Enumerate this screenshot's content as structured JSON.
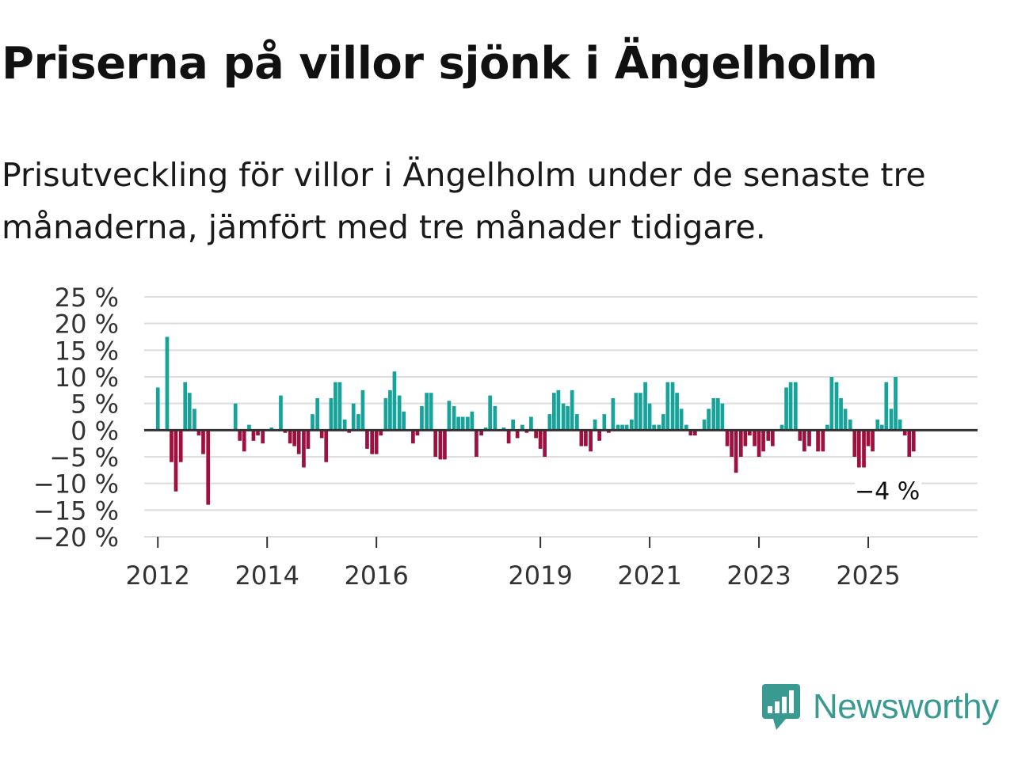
{
  "title": "Priserna på villor sjönk i Ängelholm",
  "subtitle": "Prisutveckling för villor i Ängelholm under de senaste tre månaderna, jämfört med tre månader tidigare.",
  "logo": {
    "text": "Newsworthy",
    "icon": "chart-bubble-icon"
  },
  "colors": {
    "positive": "#17a39a",
    "negative": "#a0103f",
    "grid": "#dddddd",
    "text": "#333333",
    "brand": "#3a9a92"
  },
  "chart_data": {
    "type": "bar",
    "title": "Prisutveckling för villor i Ängelholm",
    "xlabel": "",
    "ylabel": "",
    "ylim": [
      -20,
      25
    ],
    "yticks": [
      25,
      20,
      15,
      10,
      5,
      0,
      -5,
      -10,
      -15,
      -20
    ],
    "ytick_labels": [
      "25 %",
      "20 %",
      "15 %",
      "10 %",
      "5 %",
      "0 %",
      "−5 %",
      "−10 %",
      "−15 %",
      "−20 %"
    ],
    "xlim": [
      2011.75,
      2027.0
    ],
    "xticks": [
      2012,
      2014,
      2016,
      2019,
      2021,
      2023,
      2025
    ],
    "xtick_labels": [
      "2012",
      "2014",
      "2016",
      "2019",
      "2021",
      "2023",
      "2025"
    ],
    "annotation": {
      "label": "−4 %",
      "x": 2025.83,
      "y": -4
    },
    "bars": [
      {
        "x": 2012.0,
        "y": 8
      },
      {
        "x": 2012.17,
        "y": 17.5
      },
      {
        "x": 2012.25,
        "y": -6
      },
      {
        "x": 2012.33,
        "y": -11.5
      },
      {
        "x": 2012.42,
        "y": -6
      },
      {
        "x": 2012.5,
        "y": 9
      },
      {
        "x": 2012.58,
        "y": 7
      },
      {
        "x": 2012.67,
        "y": 4
      },
      {
        "x": 2012.75,
        "y": -1
      },
      {
        "x": 2012.83,
        "y": -4.5
      },
      {
        "x": 2012.92,
        "y": -14
      },
      {
        "x": 2013.42,
        "y": 5
      },
      {
        "x": 2013.5,
        "y": -2
      },
      {
        "x": 2013.58,
        "y": -4
      },
      {
        "x": 2013.67,
        "y": 1
      },
      {
        "x": 2013.75,
        "y": -2
      },
      {
        "x": 2013.83,
        "y": -1
      },
      {
        "x": 2013.92,
        "y": -2.5
      },
      {
        "x": 2014.08,
        "y": 0.5
      },
      {
        "x": 2014.25,
        "y": 6.5
      },
      {
        "x": 2014.33,
        "y": -0.5
      },
      {
        "x": 2014.42,
        "y": -2.5
      },
      {
        "x": 2014.5,
        "y": -3
      },
      {
        "x": 2014.58,
        "y": -4.5
      },
      {
        "x": 2014.67,
        "y": -7
      },
      {
        "x": 2014.75,
        "y": -3.5
      },
      {
        "x": 2014.83,
        "y": 3
      },
      {
        "x": 2014.92,
        "y": 6
      },
      {
        "x": 2015.0,
        "y": -1.5
      },
      {
        "x": 2015.08,
        "y": -6
      },
      {
        "x": 2015.17,
        "y": 6
      },
      {
        "x": 2015.25,
        "y": 9
      },
      {
        "x": 2015.33,
        "y": 9
      },
      {
        "x": 2015.42,
        "y": 2
      },
      {
        "x": 2015.5,
        "y": -0.5
      },
      {
        "x": 2015.58,
        "y": 5
      },
      {
        "x": 2015.67,
        "y": 3
      },
      {
        "x": 2015.75,
        "y": 7.5
      },
      {
        "x": 2015.83,
        "y": -3.5
      },
      {
        "x": 2015.92,
        "y": -4.5
      },
      {
        "x": 2016.0,
        "y": -4.5
      },
      {
        "x": 2016.08,
        "y": -1
      },
      {
        "x": 2016.17,
        "y": 6
      },
      {
        "x": 2016.25,
        "y": 7.5
      },
      {
        "x": 2016.33,
        "y": 11
      },
      {
        "x": 2016.42,
        "y": 6.5
      },
      {
        "x": 2016.5,
        "y": 3.5
      },
      {
        "x": 2016.67,
        "y": -2.5
      },
      {
        "x": 2016.75,
        "y": -1
      },
      {
        "x": 2016.83,
        "y": 4.5
      },
      {
        "x": 2016.92,
        "y": 7
      },
      {
        "x": 2017.0,
        "y": 7
      },
      {
        "x": 2017.08,
        "y": -5
      },
      {
        "x": 2017.17,
        "y": -5.5
      },
      {
        "x": 2017.25,
        "y": -5.5
      },
      {
        "x": 2017.33,
        "y": 5.5
      },
      {
        "x": 2017.42,
        "y": 4.5
      },
      {
        "x": 2017.5,
        "y": 2.5
      },
      {
        "x": 2017.58,
        "y": 2.5
      },
      {
        "x": 2017.67,
        "y": 2.5
      },
      {
        "x": 2017.75,
        "y": 3.5
      },
      {
        "x": 2017.83,
        "y": -5
      },
      {
        "x": 2017.92,
        "y": -1
      },
      {
        "x": 2018.0,
        "y": 0.5
      },
      {
        "x": 2018.08,
        "y": 6.5
      },
      {
        "x": 2018.17,
        "y": 4.5
      },
      {
        "x": 2018.33,
        "y": 0.5
      },
      {
        "x": 2018.42,
        "y": -2.5
      },
      {
        "x": 2018.5,
        "y": 2
      },
      {
        "x": 2018.58,
        "y": -1.5
      },
      {
        "x": 2018.67,
        "y": 1
      },
      {
        "x": 2018.75,
        "y": -0.5
      },
      {
        "x": 2018.83,
        "y": 2.5
      },
      {
        "x": 2018.92,
        "y": -1.5
      },
      {
        "x": 2019.0,
        "y": -3.5
      },
      {
        "x": 2019.08,
        "y": -5
      },
      {
        "x": 2019.17,
        "y": 3
      },
      {
        "x": 2019.25,
        "y": 7
      },
      {
        "x": 2019.33,
        "y": 7.5
      },
      {
        "x": 2019.42,
        "y": 5
      },
      {
        "x": 2019.5,
        "y": 4.5
      },
      {
        "x": 2019.58,
        "y": 7.5
      },
      {
        "x": 2019.67,
        "y": 3
      },
      {
        "x": 2019.75,
        "y": -3
      },
      {
        "x": 2019.83,
        "y": -3
      },
      {
        "x": 2019.92,
        "y": -4
      },
      {
        "x": 2020.0,
        "y": 2
      },
      {
        "x": 2020.08,
        "y": -2
      },
      {
        "x": 2020.17,
        "y": 3
      },
      {
        "x": 2020.25,
        "y": -0.5
      },
      {
        "x": 2020.33,
        "y": 6
      },
      {
        "x": 2020.42,
        "y": 1
      },
      {
        "x": 2020.5,
        "y": 1
      },
      {
        "x": 2020.58,
        "y": 1
      },
      {
        "x": 2020.67,
        "y": 2
      },
      {
        "x": 2020.75,
        "y": 7
      },
      {
        "x": 2020.83,
        "y": 7
      },
      {
        "x": 2020.92,
        "y": 9
      },
      {
        "x": 2021.0,
        "y": 5
      },
      {
        "x": 2021.08,
        "y": 1
      },
      {
        "x": 2021.17,
        "y": 1
      },
      {
        "x": 2021.25,
        "y": 3
      },
      {
        "x": 2021.33,
        "y": 9
      },
      {
        "x": 2021.42,
        "y": 9
      },
      {
        "x": 2021.5,
        "y": 7
      },
      {
        "x": 2021.58,
        "y": 4
      },
      {
        "x": 2021.67,
        "y": 1
      },
      {
        "x": 2021.75,
        "y": -1
      },
      {
        "x": 2021.83,
        "y": -1
      },
      {
        "x": 2022.0,
        "y": 2
      },
      {
        "x": 2022.08,
        "y": 4
      },
      {
        "x": 2022.17,
        "y": 6
      },
      {
        "x": 2022.25,
        "y": 6
      },
      {
        "x": 2022.33,
        "y": 5
      },
      {
        "x": 2022.42,
        "y": -3
      },
      {
        "x": 2022.5,
        "y": -5
      },
      {
        "x": 2022.58,
        "y": -8
      },
      {
        "x": 2022.67,
        "y": -5
      },
      {
        "x": 2022.75,
        "y": -3
      },
      {
        "x": 2022.83,
        "y": -1
      },
      {
        "x": 2022.92,
        "y": -3
      },
      {
        "x": 2023.0,
        "y": -5
      },
      {
        "x": 2023.08,
        "y": -4
      },
      {
        "x": 2023.17,
        "y": -2
      },
      {
        "x": 2023.25,
        "y": -3
      },
      {
        "x": 2023.42,
        "y": 1
      },
      {
        "x": 2023.5,
        "y": 8
      },
      {
        "x": 2023.58,
        "y": 9
      },
      {
        "x": 2023.67,
        "y": 9
      },
      {
        "x": 2023.75,
        "y": -2
      },
      {
        "x": 2023.83,
        "y": -4
      },
      {
        "x": 2023.92,
        "y": -3
      },
      {
        "x": 2024.08,
        "y": -4
      },
      {
        "x": 2024.17,
        "y": -4
      },
      {
        "x": 2024.25,
        "y": 1
      },
      {
        "x": 2024.33,
        "y": 10
      },
      {
        "x": 2024.42,
        "y": 9
      },
      {
        "x": 2024.5,
        "y": 6
      },
      {
        "x": 2024.58,
        "y": 4
      },
      {
        "x": 2024.67,
        "y": 2
      },
      {
        "x": 2024.75,
        "y": -5
      },
      {
        "x": 2024.83,
        "y": -7
      },
      {
        "x": 2024.92,
        "y": -7
      },
      {
        "x": 2025.0,
        "y": -3
      },
      {
        "x": 2025.08,
        "y": -4
      },
      {
        "x": 2025.17,
        "y": 2
      },
      {
        "x": 2025.25,
        "y": 1
      },
      {
        "x": 2025.33,
        "y": 9
      },
      {
        "x": 2025.42,
        "y": 4
      },
      {
        "x": 2025.5,
        "y": 10
      },
      {
        "x": 2025.58,
        "y": 2
      },
      {
        "x": 2025.67,
        "y": -1
      },
      {
        "x": 2025.75,
        "y": -5
      },
      {
        "x": 2025.83,
        "y": -4
      }
    ]
  }
}
